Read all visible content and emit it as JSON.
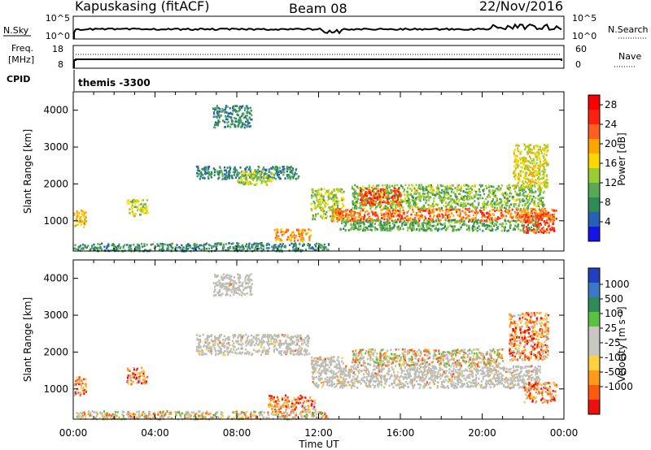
{
  "header": {
    "title": "Kapuskasing (fitACF)",
    "beam": "Beam 08",
    "date": "22/Nov/2016"
  },
  "top_panels": {
    "nsky": {
      "label": "N.Sky",
      "ticks": [
        "10^5",
        "10^0"
      ]
    },
    "nsearch": {
      "label": "N.Search",
      "ticks": [
        "10^5",
        "10^0"
      ]
    },
    "freq": {
      "label": "Freq.",
      "unit": "[MHz]",
      "ticks": [
        "18",
        "8"
      ]
    },
    "nave": {
      "label": "Nave",
      "ticks": [
        "60",
        "0"
      ]
    },
    "cpid": {
      "label": "CPID",
      "value": "themis -3300"
    }
  },
  "colors": {
    "power_scale": [
      "#1414e6",
      "#2860b8",
      "#2e8b57",
      "#58a858",
      "#9acd32",
      "#ffd700",
      "#ffa500",
      "#ff6020",
      "#ff2010",
      "#ff0000"
    ],
    "velocity_scale": [
      "#2040c0",
      "#3c78c8",
      "#2e8b57",
      "#5cc040",
      "#c8c8c0",
      "#c8c8c0",
      "#ffd040",
      "#ff9a1a",
      "#ff5a10",
      "#ee1010"
    ],
    "ground_scatter": "#bdbdb6"
  },
  "chart_data": [
    {
      "type": "heatmap",
      "name": "Power",
      "title": "",
      "xlabel": "Time UT",
      "ylabel": "Slant Range [km]",
      "x_ticks": [
        "00:00",
        "04:00",
        "08:00",
        "12:00",
        "16:00",
        "20:00",
        "00:00"
      ],
      "xlim": [
        0,
        24
      ],
      "ylim": [
        180,
        4500
      ],
      "y_ticks": [
        1000,
        2000,
        3000,
        4000
      ],
      "colorbar": {
        "label": "Power [dB]",
        "ticks": [
          4,
          8,
          12,
          16,
          20,
          24,
          28
        ],
        "range": [
          0,
          30
        ]
      },
      "regions": [
        {
          "t0": 0.0,
          "t1": 0.6,
          "r0": 850,
          "r1": 1350,
          "val": 18
        },
        {
          "t0": 2.6,
          "t1": 3.6,
          "r0": 1150,
          "r1": 1600,
          "val": 14
        },
        {
          "t0": 6.0,
          "t1": 11.0,
          "r0": 2150,
          "r1": 2500,
          "val": 8
        },
        {
          "t0": 8.0,
          "t1": 9.7,
          "r0": 2000,
          "r1": 2350,
          "val": 14
        },
        {
          "t0": 6.8,
          "t1": 8.7,
          "r0": 3550,
          "r1": 4150,
          "val": 8
        },
        {
          "t0": 9.8,
          "t1": 11.6,
          "r0": 480,
          "r1": 800,
          "val": 20
        },
        {
          "t0": 0.0,
          "t1": 12.5,
          "r0": 200,
          "r1": 420,
          "val": 8
        },
        {
          "t0": 11.6,
          "t1": 13.2,
          "r0": 1050,
          "r1": 1900,
          "val": 14
        },
        {
          "t0": 12.6,
          "t1": 23.6,
          "r0": 1000,
          "r1": 1350,
          "val": 22
        },
        {
          "t0": 13.0,
          "t1": 22.8,
          "r0": 750,
          "r1": 1050,
          "val": 10
        },
        {
          "t0": 13.6,
          "t1": 23.0,
          "r0": 1350,
          "r1": 2000,
          "val": 12
        },
        {
          "t0": 14.0,
          "t1": 16.0,
          "r0": 1450,
          "r1": 1900,
          "val": 24
        },
        {
          "t0": 21.5,
          "t1": 23.2,
          "r0": 1900,
          "r1": 3100,
          "val": 16
        },
        {
          "t0": 22.0,
          "t1": 23.5,
          "r0": 700,
          "r1": 1200,
          "val": 24
        }
      ]
    },
    {
      "type": "heatmap",
      "name": "Velocity",
      "title": "",
      "xlabel": "Time UT",
      "ylabel": "Slant Range [km]",
      "x_ticks": [
        "00:00",
        "04:00",
        "08:00",
        "12:00",
        "16:00",
        "20:00",
        "00:00"
      ],
      "xlim": [
        0,
        24
      ],
      "ylim": [
        180,
        4500
      ],
      "y_ticks": [
        1000,
        2000,
        3000,
        4000
      ],
      "colorbar": {
        "label": "Velocity [m s⁻¹]",
        "ticks": [
          "1000",
          "500",
          "100",
          "25",
          "-25",
          "-100",
          "-500",
          "-1000"
        ]
      },
      "regions": [
        {
          "t0": 0.0,
          "t1": 0.6,
          "r0": 850,
          "r1": 1350,
          "val": "neg"
        },
        {
          "t0": 2.6,
          "t1": 3.6,
          "r0": 1150,
          "r1": 1600,
          "val": "neg"
        },
        {
          "t0": 6.0,
          "t1": 11.5,
          "r0": 1950,
          "r1": 2500,
          "val": "gs"
        },
        {
          "t0": 6.8,
          "t1": 8.7,
          "r0": 3550,
          "r1": 4150,
          "val": "gs"
        },
        {
          "t0": 9.5,
          "t1": 11.8,
          "r0": 450,
          "r1": 850,
          "val": "neg"
        },
        {
          "t0": 0.0,
          "t1": 12.5,
          "r0": 200,
          "r1": 420,
          "val": "mixed"
        },
        {
          "t0": 11.6,
          "t1": 13.2,
          "r0": 1050,
          "r1": 1900,
          "val": "gs"
        },
        {
          "t0": 13.0,
          "t1": 22.8,
          "r0": 1050,
          "r1": 1650,
          "val": "gs"
        },
        {
          "t0": 13.6,
          "t1": 21.0,
          "r0": 1650,
          "r1": 2100,
          "val": "mixed"
        },
        {
          "t0": 21.3,
          "t1": 23.2,
          "r0": 1800,
          "r1": 3100,
          "val": "neg"
        },
        {
          "t0": 22.0,
          "t1": 23.6,
          "r0": 650,
          "r1": 1200,
          "val": "neg"
        }
      ]
    }
  ]
}
